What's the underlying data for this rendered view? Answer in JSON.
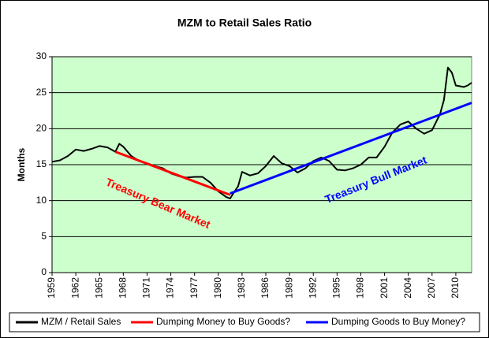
{
  "chart_data": {
    "type": "line",
    "title": "MZM to Retail Sales Ratio",
    "y_label": "Months",
    "xlim": [
      1959,
      2012
    ],
    "xticks": [
      1959,
      1962,
      1965,
      1968,
      1971,
      1974,
      1977,
      1980,
      1983,
      1986,
      1989,
      1992,
      1995,
      1998,
      2001,
      2004,
      2007,
      2010
    ],
    "ylim": [
      0,
      30
    ],
    "yticks": [
      0,
      5,
      10,
      15,
      20,
      25,
      30
    ],
    "grid": true,
    "background": "#ccffcc",
    "legend": "bottom",
    "series": [
      {
        "name": "MZM / Retail Sales",
        "color": "#000000",
        "x": [
          1959,
          1960,
          1961,
          1962,
          1963,
          1964,
          1965,
          1966,
          1967,
          1967.5,
          1968,
          1969,
          1970,
          1971,
          1972,
          1973,
          1974,
          1975,
          1976,
          1977,
          1978,
          1979,
          1980,
          1981,
          1981.5,
          1982,
          1982.5,
          1983,
          1984,
          1985,
          1986,
          1987,
          1988,
          1989,
          1990,
          1991,
          1992,
          1993,
          1994,
          1995,
          1996,
          1997,
          1998,
          1999,
          2000,
          2001,
          2002,
          2003,
          2004,
          2005,
          2006,
          2007,
          2008,
          2008.5,
          2009,
          2009.5,
          2010,
          2011,
          2011.5,
          2012
        ],
        "values": [
          15.4,
          15.6,
          16.2,
          17.1,
          16.9,
          17.2,
          17.6,
          17.4,
          16.8,
          17.9,
          17.5,
          16.2,
          15.5,
          15.2,
          14.8,
          14.5,
          13.8,
          13.4,
          13.2,
          13.3,
          13.3,
          12.5,
          11.3,
          10.5,
          10.3,
          11.2,
          12.0,
          14.0,
          13.5,
          13.8,
          14.8,
          16.2,
          15.2,
          14.8,
          13.9,
          14.5,
          15.5,
          16.0,
          15.5,
          14.3,
          14.2,
          14.5,
          15.0,
          16.0,
          16.0,
          17.5,
          19.5,
          20.6,
          21.0,
          20.0,
          19.3,
          19.8,
          22.0,
          24.0,
          28.5,
          27.8,
          26.0,
          25.8,
          26.0,
          26.4
        ]
      },
      {
        "name": "Dumping Money to Buy Goods?",
        "color": "#ff0000",
        "x": [
          1967,
          1981.5
        ],
        "values": [
          16.8,
          10.8
        ]
      },
      {
        "name": "Dumping Goods to Buy Money?",
        "color": "#0000ff",
        "x": [
          1981.5,
          2012
        ],
        "values": [
          11.0,
          23.6
        ]
      }
    ],
    "annotations": [
      {
        "text": "Treasury Bear Market",
        "color": "#ff0000"
      },
      {
        "text": "Treasury Bull Market",
        "color": "#0000ff"
      }
    ]
  }
}
